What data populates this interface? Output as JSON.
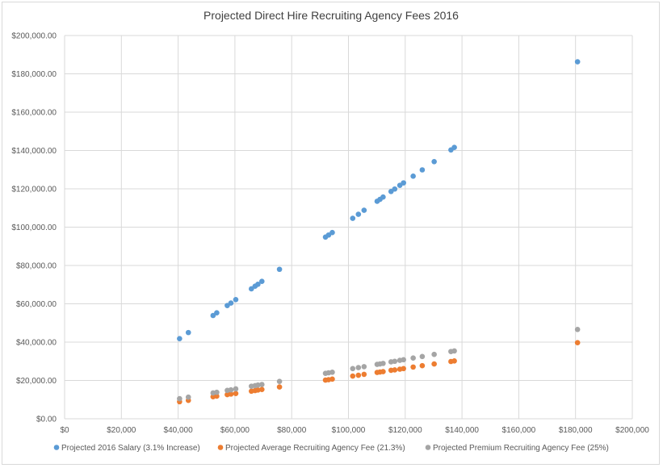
{
  "chart_data": {
    "type": "scatter",
    "title": "Projected Direct Hire Recruiting Agency Fees 2016",
    "xlim": [
      0,
      200000
    ],
    "ylim": [
      0,
      200000
    ],
    "x_ticks": [
      "$0",
      "$20,000",
      "$40,000",
      "$60,000",
      "$80,000",
      "$100,000",
      "$120,000",
      "$140,000",
      "$160,000",
      "$180,000",
      "$200,000"
    ],
    "y_ticks": [
      "$0.00",
      "$20,000.00",
      "$40,000.00",
      "$60,000.00",
      "$80,000.00",
      "$100,000.00",
      "$120,000.00",
      "$140,000.00",
      "$160,000.00",
      "$180,000.00",
      "$200,000.00"
    ],
    "grid": true,
    "legend_position": "bottom",
    "x": [
      40500,
      43600,
      52300,
      53600,
      57300,
      58600,
      60300,
      65800,
      67100,
      68100,
      69500,
      75700,
      91900,
      93000,
      94300,
      101500,
      103500,
      105500,
      110100,
      111100,
      112200,
      115000,
      116300,
      118100,
      119400,
      122800,
      126000,
      130200,
      136100,
      137300,
      180700
    ],
    "series": [
      {
        "name": "Projected 2016 Salary (3.1% Increase)",
        "color": "#5b9bd5",
        "values": [
          41800,
          45000,
          53900,
          55300,
          59100,
          60400,
          62200,
          67800,
          69200,
          70200,
          71700,
          78000,
          94800,
          95900,
          97200,
          104600,
          106700,
          108800,
          113500,
          114500,
          115700,
          118600,
          119900,
          121800,
          123100,
          126600,
          129900,
          134200,
          140300,
          141600,
          186300
        ]
      },
      {
        "name": "Projected Average Recruiting Agency Fee (21.3%)",
        "color": "#ed7d31",
        "values": [
          8900,
          9600,
          11500,
          11800,
          12600,
          12900,
          13200,
          14400,
          14700,
          15000,
          15300,
          16600,
          20200,
          20400,
          20700,
          22300,
          22700,
          23200,
          24200,
          24400,
          24600,
          25300,
          25500,
          25900,
          26200,
          27000,
          27700,
          28600,
          29900,
          30200,
          39700
        ]
      },
      {
        "name": "Projected Premium Recruiting Agency Fee (25%)",
        "color": "#a5a5a5",
        "values": [
          10500,
          11300,
          13500,
          13800,
          14800,
          15100,
          15600,
          17000,
          17300,
          17600,
          17900,
          19500,
          23700,
          24000,
          24300,
          26200,
          26700,
          27200,
          28400,
          28600,
          28900,
          29700,
          30000,
          30500,
          30800,
          31700,
          32500,
          33600,
          35100,
          35400,
          46600
        ]
      }
    ]
  }
}
